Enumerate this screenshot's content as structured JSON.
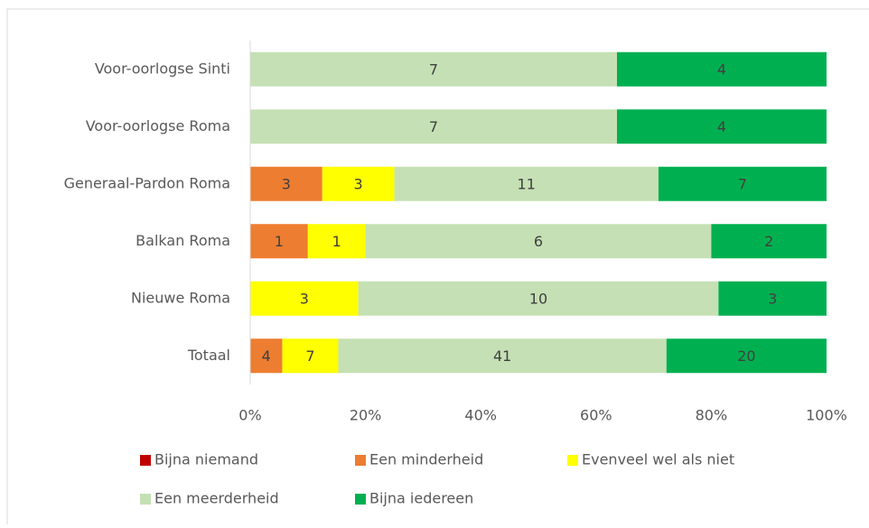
{
  "chart_data": {
    "type": "bar",
    "orientation": "horizontal",
    "stacked": "percent",
    "categories": [
      "Voor-oorlogse Sinti",
      "Voor-oorlogse Roma",
      "Generaal-Pardon Roma",
      "Balkan Roma",
      "Nieuwe Roma",
      "Totaal"
    ],
    "series": [
      {
        "name": "Bijna niemand",
        "color": "#c00000",
        "values": [
          0,
          0,
          0,
          0,
          0,
          0
        ]
      },
      {
        "name": "Een minderheid",
        "color": "#ed7d31",
        "values": [
          0,
          0,
          3,
          1,
          0,
          4
        ]
      },
      {
        "name": "Evenveel wel als niet",
        "color": "#ffff00",
        "values": [
          0,
          0,
          3,
          1,
          3,
          7
        ]
      },
      {
        "name": "Een meerderheid",
        "color": "#c5e0b4",
        "values": [
          7,
          7,
          11,
          6,
          10,
          41
        ]
      },
      {
        "name": "Bijna iedereen",
        "color": "#00b050",
        "values": [
          4,
          4,
          7,
          2,
          3,
          20
        ]
      }
    ],
    "xlim": [
      0,
      100
    ],
    "xticks": [
      {
        "value": 0,
        "label": "0%"
      },
      {
        "value": 20,
        "label": "20%"
      },
      {
        "value": 40,
        "label": "40%"
      },
      {
        "value": 60,
        "label": "60%"
      },
      {
        "value": 80,
        "label": "80%"
      },
      {
        "value": 100,
        "label": "100%"
      }
    ],
    "legend": "bottom"
  }
}
